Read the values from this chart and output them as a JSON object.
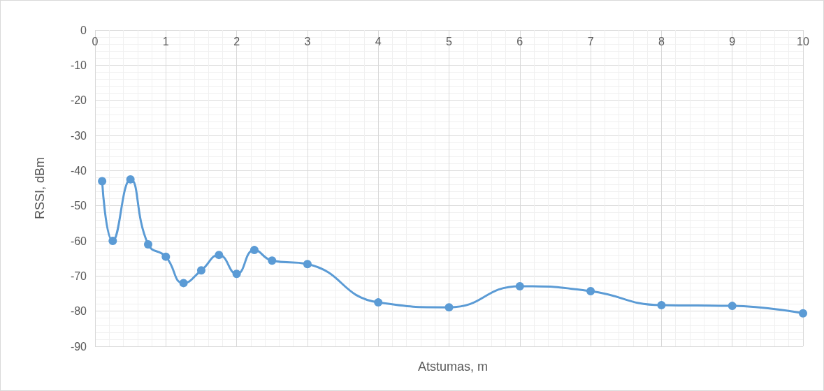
{
  "chart_data": {
    "type": "line",
    "xlabel": "Atstumas, m",
    "ylabel": "RSSI, dBm",
    "x": [
      0.1,
      0.25,
      0.5,
      0.75,
      1,
      1.25,
      1.5,
      1.75,
      2,
      2.25,
      2.5,
      3,
      4,
      5,
      6,
      7,
      8,
      9,
      10
    ],
    "series": [
      {
        "color": "#5b9bd5",
        "values": [
          -43,
          -60,
          -42.5,
          -61,
          -64.5,
          -72,
          -68.4,
          -64,
          -69.4,
          -62.6,
          -65.6,
          -66.6,
          -77.5,
          -78.9,
          -72.9,
          -74.3,
          -78.3,
          -78.5,
          -80.6
        ]
      }
    ],
    "xlim": [
      0,
      10
    ],
    "xticks": [
      0,
      1,
      2,
      3,
      4,
      5,
      6,
      7,
      8,
      9,
      10
    ],
    "ylim": [
      -90,
      0
    ],
    "yticks": [
      -90,
      -80,
      -70,
      -60,
      -50,
      -40,
      -30,
      -20,
      -10,
      0
    ],
    "grid": true,
    "marker": "circle",
    "line_style": "solid"
  }
}
